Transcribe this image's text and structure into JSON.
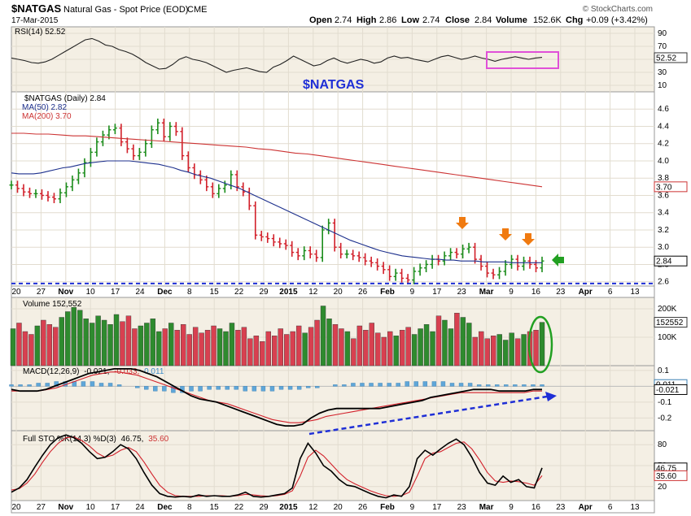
{
  "header": {
    "symbol": "$NATGAS",
    "description": "Natural Gas - Spot Price (EOD)",
    "exchange": "CME",
    "date": "17-Mar-2015",
    "brand": "© StockCharts.com",
    "open_label": "Open",
    "open": "2.74",
    "high_label": "High",
    "high": "2.86",
    "low_label": "Low",
    "low": "2.74",
    "close_label": "Close",
    "close": "2.84",
    "volume_label": "Volume",
    "volume": "152.6K",
    "chg_label": "Chg",
    "chg": "+0.09 (+3.42%)"
  },
  "colors": {
    "up": "#1a8c1a",
    "down": "#d2202a",
    "ma50": "#1c2f8c",
    "ma200": "#cc3333",
    "panel_bg": "#f4efe4",
    "annotation_blue": "#1f2fd6",
    "annotation_orange": "#f07a10",
    "annotation_magenta": "#e050d8",
    "annotation_green": "#22a022"
  },
  "chart_data": {
    "type": "ohlc",
    "x_axis_labels": [
      "20",
      "27",
      "Nov",
      "10",
      "17",
      "24",
      "Dec",
      "8",
      "15",
      "22",
      "29",
      "2015",
      "12",
      "20",
      "26",
      "Feb",
      "9",
      "17",
      "23",
      "Mar",
      "9",
      "16",
      "23",
      "Apr",
      "6",
      "13"
    ],
    "price": {
      "title": "$NATGAS (Daily) 2.84",
      "overlay_title": "$NATGAS",
      "ma50_label": "MA(50) 2.82",
      "ma200_label": "MA(200) 3.70",
      "ticks": [
        "4.6",
        "4.4",
        "4.2",
        "4.0",
        "3.8",
        "3.6",
        "3.4",
        "3.2",
        "3.0",
        "2.8",
        "2.6"
      ],
      "last_close_tag": "2.84",
      "ma200_tag": "3.70",
      "ylim": [
        2.55,
        4.8
      ],
      "support_level": 2.58,
      "close": [
        3.72,
        3.68,
        3.64,
        3.62,
        3.62,
        3.6,
        3.58,
        3.56,
        3.63,
        3.7,
        3.78,
        3.86,
        3.98,
        4.1,
        4.22,
        4.3,
        4.36,
        4.38,
        4.22,
        4.14,
        4.06,
        4.1,
        4.2,
        4.36,
        4.44,
        4.28,
        4.4,
        4.34,
        4.06,
        3.92,
        3.84,
        3.78,
        3.7,
        3.62,
        3.68,
        3.72,
        3.84,
        3.7,
        3.64,
        3.48,
        3.14,
        3.12,
        3.1,
        3.06,
        3.04,
        3.02,
        2.94,
        2.9,
        2.96,
        2.92,
        2.88,
        3.2,
        3.28,
        3.0,
        2.92,
        2.92,
        2.9,
        2.88,
        2.84,
        2.82,
        2.78,
        2.74,
        2.66,
        2.7,
        2.64,
        2.62,
        2.72,
        2.76,
        2.8,
        2.86,
        2.84,
        2.9,
        2.94,
        2.92,
        2.98,
        3.0,
        2.86,
        2.78,
        2.7,
        2.68,
        2.72,
        2.8,
        2.86,
        2.78,
        2.84,
        2.8,
        2.76,
        2.84
      ],
      "ma50": [
        3.86,
        3.85,
        3.85,
        3.85,
        3.86,
        3.88,
        3.9,
        3.92,
        3.93,
        3.95,
        3.97,
        3.98,
        3.99,
        4.0,
        4.0,
        4.0,
        4.0,
        3.99,
        3.98,
        3.97,
        3.96,
        3.94,
        3.92,
        3.89,
        3.87,
        3.84,
        3.82,
        3.8,
        3.77,
        3.74,
        3.71,
        3.68,
        3.64,
        3.6,
        3.56,
        3.52,
        3.48,
        3.44,
        3.4,
        3.36,
        3.32,
        3.28,
        3.24,
        3.2,
        3.16,
        3.12,
        3.08,
        3.05,
        3.02,
        2.99,
        2.96,
        2.94,
        2.92,
        2.9,
        2.89,
        2.88,
        2.87,
        2.86,
        2.86,
        2.85,
        2.85,
        2.84,
        2.84,
        2.84,
        2.83,
        2.83,
        2.83,
        2.83,
        2.82,
        2.82,
        2.82,
        2.82,
        2.82
      ],
      "ma200": [
        4.32,
        4.32,
        4.31,
        4.31,
        4.3,
        4.29,
        4.29,
        4.28,
        4.27,
        4.26,
        4.25,
        4.24,
        4.23,
        4.22,
        4.21,
        4.2,
        4.19,
        4.18,
        4.17,
        4.16,
        4.14,
        4.13,
        4.11,
        4.09,
        4.08,
        4.06,
        4.04,
        4.02,
        4.0,
        3.98,
        3.96,
        3.94,
        3.92,
        3.9,
        3.88,
        3.86,
        3.84,
        3.82,
        3.8,
        3.78,
        3.76,
        3.74,
        3.72,
        3.7
      ]
    },
    "rsi": {
      "title": "RSI(14) 52.52",
      "ticks": [
        "90",
        "70",
        "50",
        "30",
        "10"
      ],
      "last_tag": "52.52",
      "ylim": [
        0,
        100
      ],
      "values": [
        52,
        50,
        48,
        45,
        44,
        46,
        50,
        56,
        62,
        68,
        74,
        80,
        82,
        78,
        72,
        70,
        65,
        62,
        58,
        52,
        45,
        40,
        35,
        36,
        42,
        50,
        54,
        50,
        48,
        45,
        40,
        35,
        30,
        33,
        35,
        37,
        34,
        31,
        30,
        38,
        42,
        48,
        55,
        50,
        45,
        40,
        42,
        48,
        52,
        47,
        44,
        47,
        50,
        48,
        44,
        46,
        52,
        55,
        52,
        53,
        50,
        48,
        46,
        50,
        54,
        56,
        53,
        50,
        52,
        55,
        52,
        50,
        47,
        50,
        52,
        54,
        52,
        50,
        52,
        53
      ]
    },
    "volume": {
      "title": "Volume 152,552",
      "ticks": [
        "200K",
        "100K"
      ],
      "last_tag": "152552",
      "ylim": [
        0,
        240000
      ],
      "values": [
        130000,
        150000,
        120000,
        110000,
        140000,
        160000,
        145000,
        135000,
        170000,
        190000,
        205000,
        195000,
        165000,
        150000,
        175000,
        160000,
        145000,
        180000,
        155000,
        175000,
        130000,
        140000,
        150000,
        165000,
        120000,
        130000,
        150000,
        125000,
        145000,
        110000,
        135000,
        115000,
        125000,
        140000,
        130000,
        120000,
        150000,
        125000,
        135000,
        95000,
        105000,
        85000,
        120000,
        105000,
        130000,
        110000,
        120000,
        140000,
        115000,
        135000,
        160000,
        210000,
        165000,
        145000,
        130000,
        120000,
        95000,
        140000,
        125000,
        150000,
        115000,
        100000,
        120000,
        105000,
        125000,
        135000,
        110000,
        130000,
        145000,
        120000,
        175000,
        160000,
        130000,
        185000,
        170000,
        150000,
        100000,
        120000,
        95000,
        105000,
        110000,
        90000,
        115000,
        95000,
        110000,
        120000,
        125000,
        152552
      ]
    },
    "macd": {
      "title": "MACD(12,26,9)",
      "macd_value": "-0.021,",
      "signal_value": "-0.033,",
      "hist_value": "0.011",
      "ticks": [
        "0.1",
        "-0.1",
        "-0.2"
      ],
      "tags": [
        "0.011",
        "-0.021"
      ],
      "ylim": [
        -0.28,
        0.13
      ],
      "macd": [
        -0.02,
        -0.03,
        -0.03,
        -0.03,
        -0.02,
        0.0,
        0.02,
        0.04,
        0.06,
        0.08,
        0.09,
        0.1,
        0.11,
        0.11,
        0.11,
        0.1,
        0.08,
        0.06,
        0.03,
        0.0,
        -0.03,
        -0.06,
        -0.08,
        -0.09,
        -0.1,
        -0.12,
        -0.14,
        -0.16,
        -0.18,
        -0.2,
        -0.22,
        -0.24,
        -0.25,
        -0.25,
        -0.24,
        -0.2,
        -0.17,
        -0.15,
        -0.14,
        -0.14,
        -0.14,
        -0.14,
        -0.14,
        -0.14,
        -0.13,
        -0.12,
        -0.11,
        -0.1,
        -0.09,
        -0.07,
        -0.06,
        -0.05,
        -0.04,
        -0.03,
        -0.02,
        -0.02,
        -0.02,
        -0.03,
        -0.03,
        -0.03,
        -0.03,
        -0.02,
        -0.02
      ],
      "signal": [
        -0.03,
        -0.03,
        -0.03,
        -0.03,
        -0.02,
        -0.01,
        0.01,
        0.03,
        0.05,
        0.07,
        0.08,
        0.09,
        0.09,
        0.08,
        0.07,
        0.05,
        0.03,
        0.01,
        -0.01,
        -0.03,
        -0.05,
        -0.07,
        -0.09,
        -0.1,
        -0.11,
        -0.13,
        -0.15,
        -0.17,
        -0.19,
        -0.21,
        -0.22,
        -0.23,
        -0.23,
        -0.22,
        -0.21,
        -0.19,
        -0.18,
        -0.17,
        -0.16,
        -0.15,
        -0.14,
        -0.13,
        -0.12,
        -0.11,
        -0.1,
        -0.09,
        -0.08,
        -0.07,
        -0.06,
        -0.05,
        -0.04,
        -0.04,
        -0.04,
        -0.04,
        -0.04,
        -0.04,
        -0.04,
        -0.04,
        -0.03,
        -0.03
      ],
      "hist": [
        0.01,
        0.01,
        0.01,
        0.02,
        0.02,
        0.03,
        0.03,
        0.03,
        0.03,
        0.03,
        0.02,
        0.02,
        0.01,
        0.0,
        -0.01,
        -0.02,
        -0.03,
        -0.03,
        -0.04,
        -0.04,
        -0.03,
        -0.03,
        -0.02,
        -0.02,
        -0.02,
        -0.02,
        -0.03,
        -0.03,
        -0.03,
        -0.03,
        -0.02,
        -0.02,
        -0.02,
        -0.01,
        -0.01,
        0.0,
        0.01,
        0.01,
        0.02,
        0.02,
        0.02,
        0.02,
        0.02,
        0.02,
        0.03,
        0.03,
        0.03,
        0.03,
        0.03,
        0.02,
        0.02,
        0.02,
        0.01,
        0.01,
        0.01,
        0.01,
        0.01,
        0.01,
        0.01,
        0.01
      ]
    },
    "sto": {
      "title": "Full STO %K(14,3) %D(3)",
      "k_value": "46.75,",
      "d_value": "35.60",
      "ticks": [
        "80",
        "50",
        "20"
      ],
      "tags": [
        "46.75",
        "35.60"
      ],
      "ylim": [
        0,
        100
      ],
      "k": [
        12,
        18,
        30,
        48,
        65,
        80,
        90,
        94,
        90,
        82,
        70,
        60,
        62,
        70,
        80,
        74,
        60,
        40,
        22,
        10,
        6,
        5,
        6,
        5,
        8,
        6,
        7,
        6,
        6,
        8,
        12,
        6,
        5,
        6,
        8,
        10,
        18,
        60,
        82,
        68,
        50,
        42,
        30,
        22,
        20,
        15,
        10,
        6,
        4,
        8,
        6,
        20,
        60,
        72,
        65,
        74,
        82,
        88,
        80,
        62,
        40,
        25,
        22,
        35,
        26,
        30,
        20,
        18,
        46.75
      ],
      "d": [
        15,
        17,
        25,
        38,
        55,
        70,
        82,
        90,
        91,
        86,
        78,
        68,
        62,
        65,
        72,
        76,
        70,
        55,
        38,
        22,
        12,
        7,
        6,
        6,
        6,
        7,
        7,
        7,
        6,
        7,
        9,
        8,
        7,
        6,
        7,
        9,
        14,
        35,
        62,
        72,
        64,
        52,
        40,
        30,
        24,
        19,
        14,
        10,
        7,
        6,
        7,
        12,
        35,
        60,
        68,
        70,
        76,
        82,
        84,
        74,
        58,
        40,
        28,
        26,
        28,
        27,
        25,
        22,
        35.6
      ]
    },
    "annotations": {
      "trendline": "dashed blue rising line on MACD",
      "support": "dashed blue horizontal line near 2.58",
      "highlight_rsi": "magenta box",
      "volume_circle": "green ellipse"
    }
  }
}
